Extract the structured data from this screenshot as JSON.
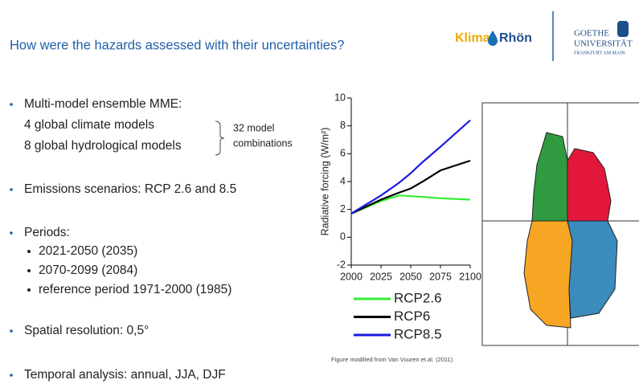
{
  "header": {
    "title": "How were the hazards assessed with their uncertainties?",
    "logo_klima": "Klima",
    "logo_rhoen": "Rhön",
    "logo_goethe": [
      "GOETHE",
      "UNIVERSITÄT",
      "FRANKFURT AM MAIN"
    ]
  },
  "bullets": [
    {
      "lines": [
        "Multi-model ensemble MME:",
        "4 global climate models",
        "8 global hydrological models"
      ],
      "note": [
        "32 model",
        "combinations"
      ]
    },
    {
      "lines": [
        "Emissions scenarios: RCP 2.6 and 8.5"
      ]
    },
    {
      "lines": [
        "Periods:"
      ],
      "sub": [
        "2021-2050 (2035)",
        "2070-2099 (2084)",
        "reference period 1971-2000 (1985)"
      ]
    },
    {
      "lines": [
        "Spatial resolution: 0,5°"
      ]
    },
    {
      "lines": [
        "Temporal analysis: annual, JJA, DJF"
      ]
    }
  ],
  "chart_data": {
    "type": "line",
    "y_label": "Radiative forcing (W/m²)",
    "x": [
      2000,
      2025,
      2040,
      2050,
      2060,
      2075,
      2100
    ],
    "series": [
      {
        "name": "RCP2.6",
        "color": "#33ee33",
        "values": [
          1.7,
          2.6,
          3.0,
          2.95,
          2.9,
          2.8,
          2.7
        ]
      },
      {
        "name": "RCP6",
        "color": "#000000",
        "values": [
          1.7,
          2.7,
          3.2,
          3.5,
          4.0,
          4.8,
          5.5
        ]
      },
      {
        "name": "RCP8.5",
        "color": "#1a1adf",
        "values": [
          1.7,
          3.0,
          3.9,
          4.6,
          5.4,
          6.5,
          8.4
        ]
      }
    ],
    "xlim": [
      2000,
      2100
    ],
    "xticks": [
      2000,
      2025,
      2050,
      2075,
      2100
    ],
    "ylim": [
      -2,
      10
    ],
    "yticks": [
      -2,
      0,
      2,
      4,
      6,
      8,
      10
    ]
  },
  "caption": "Figure modified  from Van Vuuren et.al. (2011)"
}
